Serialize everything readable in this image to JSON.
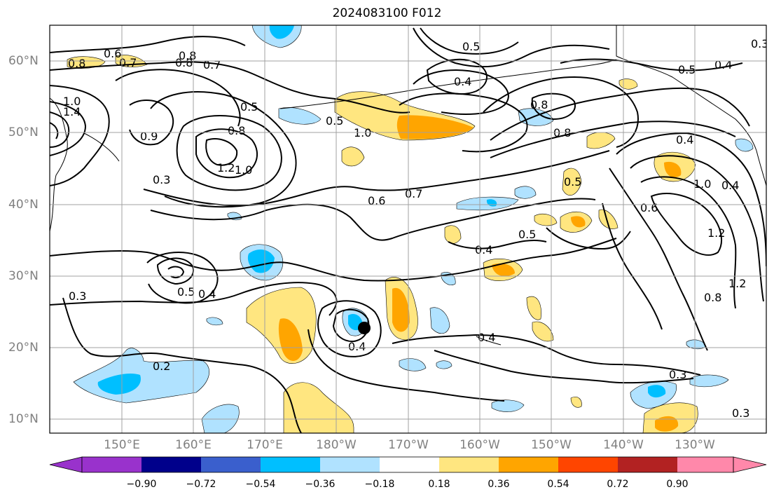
{
  "title": "2024083100 F012",
  "lat_labels": [
    "60°N",
    "50°N",
    "40°N",
    "30°N",
    "20°N",
    "10°N"
  ],
  "lon_labels": [
    "150°E",
    "160°E",
    "170°E",
    "180°W",
    "170°W",
    "160°W",
    "150°W",
    "140°W",
    "130°W"
  ],
  "colorbar": {
    "ticks": [
      "−0.90",
      "−0.72",
      "−0.54",
      "−0.36",
      "−0.18",
      "0.18",
      "0.36",
      "0.54",
      "0.72",
      "0.90"
    ],
    "colors": [
      "#9932CC",
      "#00008B",
      "#3A5FCD",
      "#00BFFF",
      "#B0E2FF",
      "#FFFFFF",
      "#FFE680",
      "#FFA500",
      "#FF4500",
      "#B22222",
      "#FF88AA"
    ]
  },
  "contour_labels": [
    "0.6",
    "0.7",
    "0.8",
    "0.8",
    "0.7",
    "1.0",
    "1.4",
    "0.9",
    "0.3",
    "0.5",
    "0.8",
    "1.2",
    "1.0",
    "0.5",
    "1.0",
    "0.8",
    "0.5",
    "0.4",
    "0.8",
    "0.8",
    "0.3",
    "0.5",
    "0.4",
    "0.6",
    "0.7",
    "0.5",
    "0.6",
    "1.0",
    "1.2",
    "0.4",
    "0.5",
    "0.4",
    "0.4",
    "0.4",
    "0.5",
    "0.4",
    "0.3",
    "0.2",
    "0.8",
    "1.2",
    "0.3",
    "0.3",
    "0.4"
  ],
  "shading": {
    "positive_light": "#FFE680",
    "positive_mid": "#FFA500",
    "negative_light": "#B0E2FF",
    "negative_mid": "#00BFFF",
    "negative_strong": "#3A5FCD"
  }
}
